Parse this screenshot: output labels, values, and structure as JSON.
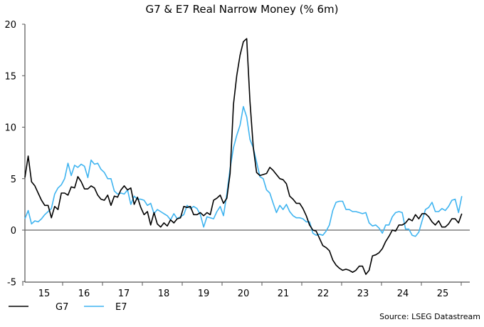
{
  "chart_data": {
    "type": "line",
    "title": "G7 & E7 Real Narrow Money (% 6m)",
    "source": "Source: LSEG Datastream",
    "x_start": "2015-01",
    "x_frequency": "monthly",
    "x_tick_labels": [
      "15",
      "16",
      "17",
      "18",
      "19",
      "20",
      "21",
      "22",
      "23",
      "24",
      "25"
    ],
    "ylim": [
      -5,
      20
    ],
    "y_ticks": [
      -5,
      0,
      5,
      10,
      15,
      20
    ],
    "legend_position": "bottom-left",
    "grid": false,
    "series": [
      {
        "name": "G7",
        "color": "#000000",
        "values": [
          5.1,
          7.2,
          4.7,
          4.3,
          3.6,
          2.9,
          2.4,
          2.4,
          1.2,
          2.3,
          2.0,
          3.6,
          3.6,
          3.4,
          4.2,
          4.1,
          5.2,
          4.7,
          4.0,
          4.0,
          4.3,
          4.1,
          3.4,
          3.0,
          2.9,
          3.4,
          2.4,
          3.3,
          3.2,
          3.9,
          4.3,
          3.9,
          4.1,
          2.5,
          3.2,
          2.2,
          1.5,
          1.8,
          0.5,
          1.7,
          0.6,
          0.3,
          0.7,
          0.4,
          1.0,
          0.7,
          1.1,
          1.2,
          2.3,
          2.2,
          2.3,
          1.5,
          1.5,
          1.7,
          1.4,
          1.7,
          1.5,
          2.9,
          3.1,
          3.4,
          2.6,
          3.1,
          5.5,
          12.2,
          15.0,
          17.0,
          18.3,
          18.6,
          12.5,
          8.0,
          5.6,
          5.3,
          5.4,
          5.5,
          6.1,
          5.8,
          5.4,
          5.0,
          4.9,
          4.5,
          3.3,
          3.0,
          2.6,
          2.6,
          2.1,
          1.4,
          0.5,
          0.0,
          -0.1,
          -0.8,
          -1.5,
          -1.7,
          -2.0,
          -2.9,
          -3.4,
          -3.7,
          -3.9,
          -3.8,
          -3.9,
          -4.1,
          -3.9,
          -3.5,
          -3.5,
          -4.3,
          -3.9,
          -2.5,
          -2.4,
          -2.2,
          -1.8,
          -1.1,
          -0.6,
          0.0,
          -0.1,
          0.5,
          0.5,
          0.7,
          1.1,
          0.9,
          1.5,
          1.1,
          1.6,
          1.6,
          1.3,
          0.8,
          0.5,
          0.9,
          0.3,
          0.3,
          0.6,
          1.1,
          1.1,
          0.7,
          1.6
        ]
      },
      {
        "name": "E7",
        "color": "#3fb4f0",
        "values": [
          1.1,
          1.9,
          0.6,
          0.9,
          0.8,
          1.1,
          1.5,
          1.8,
          2.1,
          3.5,
          4.1,
          4.4,
          5.0,
          6.5,
          5.3,
          6.3,
          6.1,
          6.4,
          6.2,
          5.1,
          6.8,
          6.4,
          6.5,
          5.9,
          5.6,
          5.0,
          5.0,
          3.8,
          3.5,
          3.6,
          3.5,
          3.9,
          2.5,
          3.3,
          3.0,
          3.0,
          2.9,
          2.4,
          2.6,
          1.6,
          2.0,
          1.8,
          1.6,
          1.4,
          1.0,
          1.6,
          1.1,
          1.3,
          1.5,
          2.4,
          2.1,
          2.3,
          2.1,
          1.5,
          0.3,
          1.3,
          1.2,
          1.1,
          1.8,
          2.3,
          1.4,
          3.5,
          6.0,
          8.0,
          9.2,
          10.2,
          12.0,
          11.0,
          8.8,
          8.0,
          6.6,
          5.2,
          5.0,
          3.9,
          3.6,
          2.6,
          1.7,
          2.4,
          2.0,
          2.5,
          1.8,
          1.4,
          1.2,
          1.2,
          1.1,
          0.8,
          0.8,
          -0.3,
          -0.5,
          -0.4,
          -0.5,
          -0.1,
          0.5,
          1.9,
          2.7,
          2.8,
          2.8,
          2.0,
          2.0,
          1.8,
          1.8,
          1.7,
          1.6,
          1.7,
          0.7,
          0.4,
          0.5,
          0.2,
          -0.3,
          0.5,
          0.5,
          1.3,
          1.7,
          1.8,
          1.7,
          0.1,
          0.1,
          -0.5,
          -0.6,
          -0.2,
          0.9,
          2.0,
          2.2,
          2.7,
          1.8,
          1.8,
          2.1,
          1.9,
          2.3,
          2.9,
          3.0,
          1.7,
          3.3
        ]
      }
    ]
  }
}
